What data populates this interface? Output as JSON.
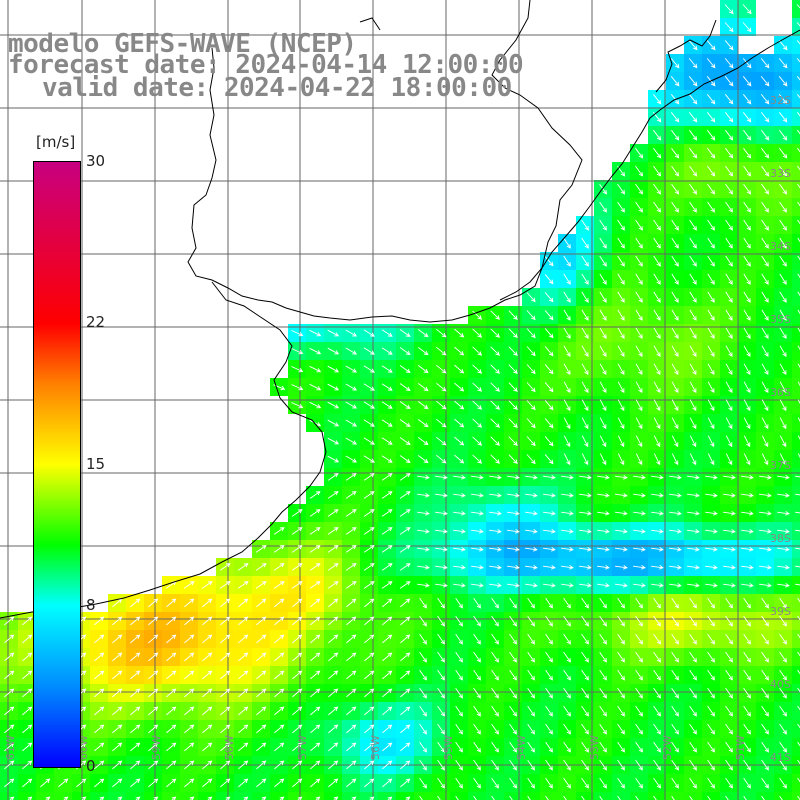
{
  "title": {
    "line1": "modelo GEFS-WAVE (NCEP)",
    "line2": "forecast date: 2024-04-14 12:00:00",
    "line3": "valid date: 2024-04-22 18:00:00"
  },
  "colorbar": {
    "unit": "[m/s]",
    "ticks": [
      {
        "value": 30,
        "label": "30"
      },
      {
        "value": 22,
        "label": "22"
      },
      {
        "value": 15,
        "label": "15"
      },
      {
        "value": 8,
        "label": "8"
      },
      {
        "value": 0,
        "label": "0"
      }
    ],
    "min": 0,
    "max": 30
  },
  "lat_labels": [
    "32S",
    "33S",
    "34S",
    "35S",
    "36S",
    "37S",
    "38S",
    "39S",
    "40S",
    "41S"
  ],
  "lon_labels": [
    "61W",
    "60W",
    "59W",
    "58W",
    "57W",
    "56W",
    "55W",
    "54W",
    "53W",
    "52W",
    "51W"
  ],
  "colors": {
    "land": "#ffffff",
    "grid": "#666666",
    "coast": "#000000",
    "arrow": "#ffffff",
    "label": "#888888"
  }
}
